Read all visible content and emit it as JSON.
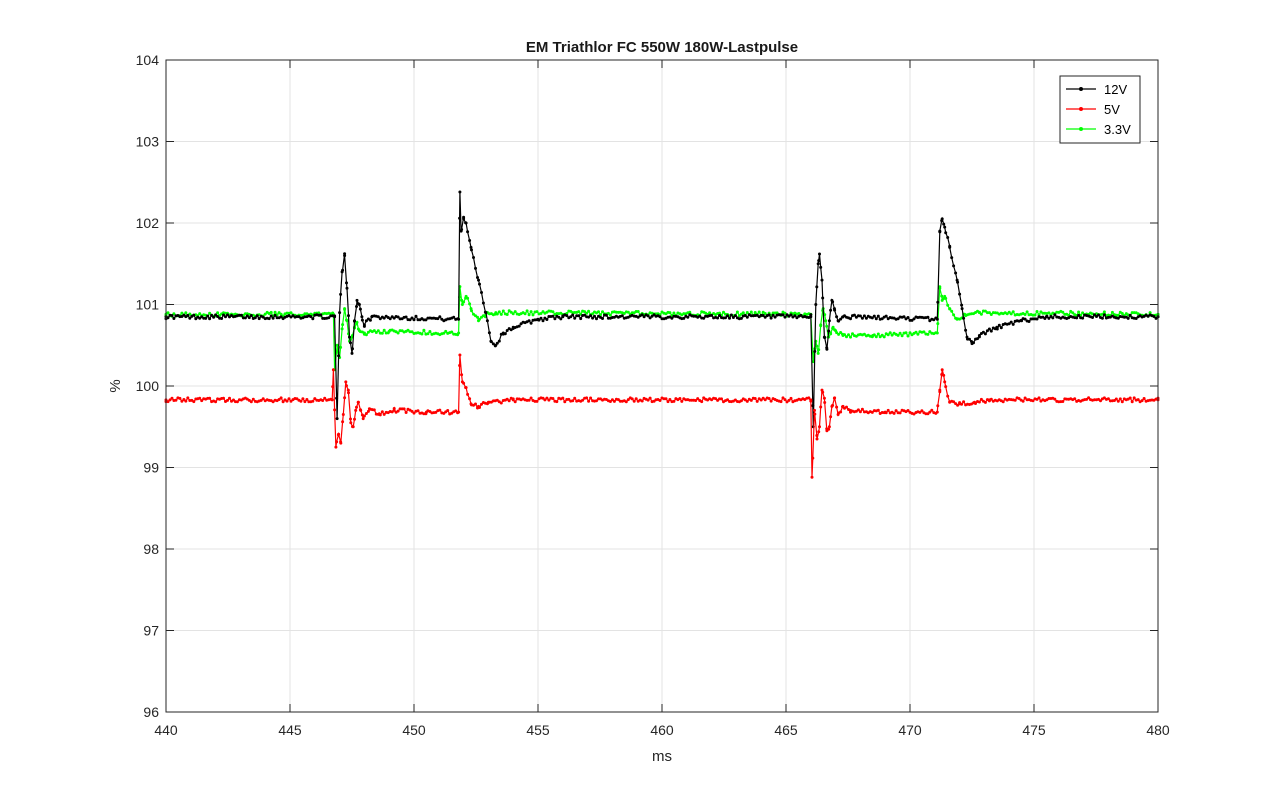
{
  "chart_data": {
    "type": "line",
    "title": "EM Triathlor FC 550W 180W-Lastpulse",
    "xlabel": "ms",
    "ylabel": "%",
    "xlim": [
      440,
      480
    ],
    "ylim": [
      96,
      104
    ],
    "xticks": [
      440,
      445,
      450,
      455,
      460,
      465,
      470,
      475,
      480
    ],
    "yticks": [
      96,
      97,
      98,
      99,
      100,
      101,
      102,
      103,
      104
    ],
    "grid": true,
    "legend_position": "top-right",
    "series": [
      {
        "name": "12V",
        "color": "#000000",
        "points": [
          [
            440,
            100.85
          ],
          [
            446.8,
            100.85
          ],
          [
            446.9,
            99.6
          ],
          [
            447.0,
            100.9
          ],
          [
            447.1,
            101.4
          ],
          [
            447.2,
            101.6
          ],
          [
            447.3,
            101.2
          ],
          [
            447.4,
            100.6
          ],
          [
            447.5,
            100.4
          ],
          [
            447.6,
            100.8
          ],
          [
            447.7,
            101.05
          ],
          [
            447.8,
            101.0
          ],
          [
            447.9,
            100.85
          ],
          [
            448.0,
            100.75
          ],
          [
            448.3,
            100.85
          ],
          [
            451.8,
            100.82
          ],
          [
            451.85,
            102.38
          ],
          [
            451.9,
            101.9
          ],
          [
            452.0,
            102.05
          ],
          [
            452.1,
            102.0
          ],
          [
            452.3,
            101.7
          ],
          [
            452.6,
            101.3
          ],
          [
            452.9,
            100.9
          ],
          [
            453.1,
            100.55
          ],
          [
            453.3,
            100.5
          ],
          [
            453.6,
            100.65
          ],
          [
            454.0,
            100.72
          ],
          [
            455.0,
            100.82
          ],
          [
            456.0,
            100.85
          ],
          [
            466.0,
            100.85
          ],
          [
            466.1,
            99.5
          ],
          [
            466.2,
            101.0
          ],
          [
            466.3,
            101.5
          ],
          [
            466.35,
            101.62
          ],
          [
            466.45,
            101.3
          ],
          [
            466.55,
            100.6
          ],
          [
            466.65,
            100.45
          ],
          [
            466.75,
            100.8
          ],
          [
            466.85,
            101.05
          ],
          [
            466.95,
            100.95
          ],
          [
            467.1,
            100.8
          ],
          [
            467.3,
            100.85
          ],
          [
            471.1,
            100.82
          ],
          [
            471.2,
            101.9
          ],
          [
            471.3,
            102.05
          ],
          [
            471.4,
            101.95
          ],
          [
            471.6,
            101.7
          ],
          [
            471.9,
            101.3
          ],
          [
            472.1,
            100.95
          ],
          [
            472.3,
            100.6
          ],
          [
            472.5,
            100.52
          ],
          [
            472.8,
            100.62
          ],
          [
            473.5,
            100.72
          ],
          [
            474.5,
            100.8
          ],
          [
            475.5,
            100.85
          ],
          [
            480,
            100.85
          ]
        ]
      },
      {
        "name": "5V",
        "color": "#ff0000",
        "points": [
          [
            440,
            99.83
          ],
          [
            446.7,
            99.83
          ],
          [
            446.75,
            100.2
          ],
          [
            446.85,
            99.25
          ],
          [
            446.95,
            99.4
          ],
          [
            447.05,
            99.3
          ],
          [
            447.15,
            99.65
          ],
          [
            447.25,
            100.05
          ],
          [
            447.35,
            99.95
          ],
          [
            447.45,
            99.55
          ],
          [
            447.55,
            99.5
          ],
          [
            447.65,
            99.7
          ],
          [
            447.75,
            99.8
          ],
          [
            447.85,
            99.7
          ],
          [
            447.95,
            99.6
          ],
          [
            448.2,
            99.72
          ],
          [
            448.6,
            99.66
          ],
          [
            449.2,
            99.7
          ],
          [
            450.5,
            99.68
          ],
          [
            451.8,
            99.68
          ],
          [
            451.85,
            100.38
          ],
          [
            451.95,
            100.05
          ],
          [
            452.1,
            99.98
          ],
          [
            452.3,
            99.78
          ],
          [
            452.6,
            99.75
          ],
          [
            453.0,
            99.8
          ],
          [
            454.0,
            99.83
          ],
          [
            466.0,
            99.83
          ],
          [
            466.05,
            98.88
          ],
          [
            466.15,
            99.7
          ],
          [
            466.25,
            99.35
          ],
          [
            466.35,
            99.5
          ],
          [
            466.45,
            99.95
          ],
          [
            466.55,
            99.85
          ],
          [
            466.65,
            99.45
          ],
          [
            466.75,
            99.5
          ],
          [
            466.85,
            99.75
          ],
          [
            466.95,
            99.85
          ],
          [
            467.1,
            99.65
          ],
          [
            467.3,
            99.75
          ],
          [
            467.6,
            99.7
          ],
          [
            469.0,
            99.68
          ],
          [
            471.1,
            99.68
          ],
          [
            471.2,
            99.95
          ],
          [
            471.3,
            100.2
          ],
          [
            471.4,
            100.05
          ],
          [
            471.6,
            99.8
          ],
          [
            472.0,
            99.78
          ],
          [
            472.6,
            99.8
          ],
          [
            473.2,
            99.83
          ],
          [
            480,
            99.83
          ]
        ]
      },
      {
        "name": "3.3V",
        "color": "#00ff00",
        "points": [
          [
            440,
            100.88
          ],
          [
            446.75,
            100.88
          ],
          [
            446.8,
            100.2
          ],
          [
            446.9,
            100.5
          ],
          [
            447.0,
            100.35
          ],
          [
            447.1,
            100.7
          ],
          [
            447.2,
            100.95
          ],
          [
            447.3,
            100.8
          ],
          [
            447.4,
            100.55
          ],
          [
            447.5,
            100.6
          ],
          [
            447.6,
            100.72
          ],
          [
            447.7,
            100.78
          ],
          [
            447.8,
            100.68
          ],
          [
            448.0,
            100.65
          ],
          [
            449.0,
            100.67
          ],
          [
            451.8,
            100.65
          ],
          [
            451.85,
            101.22
          ],
          [
            451.95,
            101.0
          ],
          [
            452.1,
            101.1
          ],
          [
            452.3,
            100.95
          ],
          [
            452.6,
            100.8
          ],
          [
            452.9,
            100.88
          ],
          [
            453.3,
            100.9
          ],
          [
            466.0,
            100.88
          ],
          [
            466.1,
            100.3
          ],
          [
            466.2,
            100.55
          ],
          [
            466.3,
            100.4
          ],
          [
            466.4,
            100.75
          ],
          [
            466.5,
            100.95
          ],
          [
            466.6,
            100.8
          ],
          [
            466.7,
            100.6
          ],
          [
            466.8,
            100.65
          ],
          [
            466.9,
            100.72
          ],
          [
            467.0,
            100.68
          ],
          [
            467.3,
            100.62
          ],
          [
            468.5,
            100.62
          ],
          [
            471.1,
            100.65
          ],
          [
            471.2,
            101.2
          ],
          [
            471.3,
            101.05
          ],
          [
            471.4,
            101.1
          ],
          [
            471.6,
            100.95
          ],
          [
            471.9,
            100.82
          ],
          [
            472.2,
            100.88
          ],
          [
            472.8,
            100.9
          ],
          [
            480,
            100.88
          ]
        ]
      }
    ]
  }
}
